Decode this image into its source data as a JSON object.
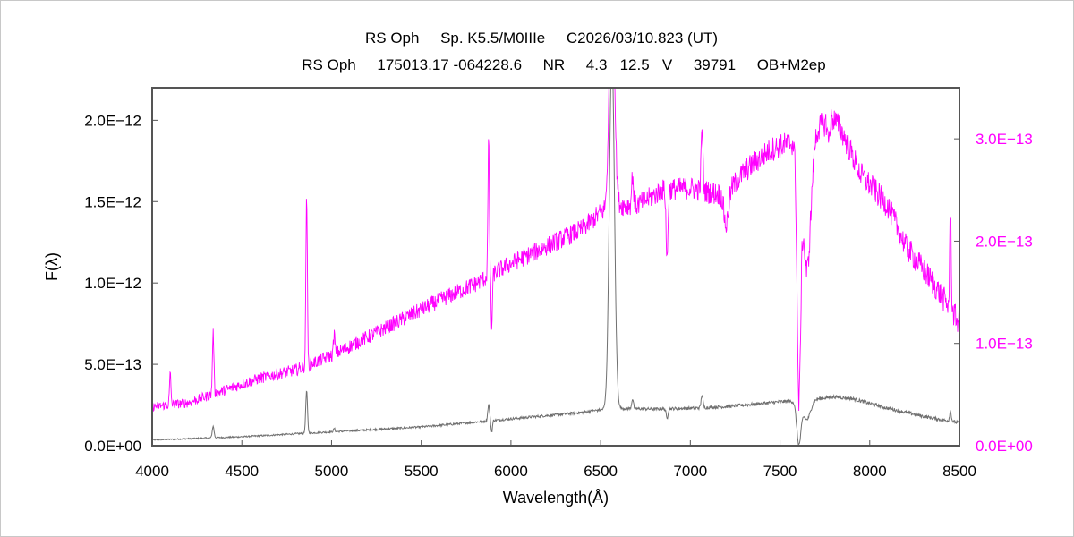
{
  "header": {
    "line1": "RS Oph     Sp. K5.5/M0IIIe     C2026/03/10.823 (UT)",
    "line2": "RS Oph     175013.17 -064228.6     NR     4.3   12.5   V     39791     OB+M2ep"
  },
  "chart_data": {
    "type": "line",
    "title": "RS Oph     Sp. K5.5/M0IIIe     C2026/03/10.823 (UT)",
    "subtitle": "RS Oph     175013.17 -064228.6     NR     4.3   12.5   V     39791     OB+M2ep",
    "xlabel": "Wavelength(Å)",
    "ylabel": "F(λ)",
    "xlim": [
      4000,
      8500
    ],
    "ylim_left": [
      0,
      2.2e-12
    ],
    "ylim_right": [
      0,
      3.5e-13
    ],
    "grid": false,
    "x_ticks": [
      {
        "value": 4000,
        "label": "4000"
      },
      {
        "value": 4500,
        "label": "4500"
      },
      {
        "value": 5000,
        "label": "5000"
      },
      {
        "value": 5500,
        "label": "5500"
      },
      {
        "value": 6000,
        "label": "6000"
      },
      {
        "value": 6500,
        "label": "6500"
      },
      {
        "value": 7000,
        "label": "7000"
      },
      {
        "value": 7500,
        "label": "7500"
      },
      {
        "value": 8000,
        "label": "8000"
      },
      {
        "value": 8500,
        "label": "8500"
      }
    ],
    "y_ticks_left": [
      {
        "value": 0,
        "label": "0.0E+00"
      },
      {
        "value": 5e-13,
        "label": "5.0E−13"
      },
      {
        "value": 1e-12,
        "label": "1.0E−12"
      },
      {
        "value": 1.5e-12,
        "label": "1.5E−12"
      },
      {
        "value": 2e-12,
        "label": "2.0E−12"
      }
    ],
    "y_ticks_right": [
      {
        "value": 0,
        "label": "0.0E+00"
      },
      {
        "value": 1e-13,
        "label": "1.0E−13"
      },
      {
        "value": 2e-13,
        "label": "2.0E−13"
      },
      {
        "value": 3e-13,
        "label": "3.0E−13"
      }
    ],
    "series": [
      {
        "axis": "left",
        "color": "#707070",
        "continuum": [
          [
            4000,
            3.5e-14
          ],
          [
            4500,
            5.5e-14
          ],
          [
            5000,
            8.5e-14
          ],
          [
            5500,
            1.15e-13
          ],
          [
            6000,
            1.65e-13
          ],
          [
            6400,
            2.05e-13
          ],
          [
            6560,
            2.3e-13
          ],
          [
            6800,
            2.25e-13
          ],
          [
            7000,
            2.3e-13
          ],
          [
            7200,
            2.4e-13
          ],
          [
            7500,
            2.7e-13
          ],
          [
            7600,
            2.75e-13
          ],
          [
            7650,
            2.8e-13
          ],
          [
            7800,
            3e-13
          ],
          [
            7900,
            2.9e-13
          ],
          [
            8100,
            2.3e-13
          ],
          [
            8300,
            1.8e-13
          ],
          [
            8500,
            1.4e-13
          ]
        ],
        "features": [
          {
            "x": 4340,
            "depth": 7e-14,
            "width": 5
          },
          {
            "x": 4861,
            "depth": 2.6e-13,
            "width": 5
          },
          {
            "x": 5015,
            "depth": 2e-14,
            "width": 4
          },
          {
            "x": 5876,
            "depth": 1e-13,
            "width": 5
          },
          {
            "x": 5893,
            "depth": -7e-14,
            "width": 4
          },
          {
            "x": 6563,
            "depth": 2.2e-12,
            "width": 14
          },
          {
            "x": 6678,
            "depth": 6e-14,
            "width": 5
          },
          {
            "x": 6870,
            "depth": -6e-14,
            "width": 5
          },
          {
            "x": 7065,
            "depth": 8e-14,
            "width": 5
          },
          {
            "x": 7605,
            "depth": -2.6e-13,
            "width": 12
          },
          {
            "x": 7650,
            "depth": -1.2e-13,
            "width": 20
          },
          {
            "x": 8450,
            "depth": 6e-14,
            "width": 5
          }
        ]
      },
      {
        "axis": "right",
        "color": "#ff00ff",
        "continuum": [
          [
            4000,
            3.8e-14
          ],
          [
            4200,
            4.2e-14
          ],
          [
            4400,
            5.4e-14
          ],
          [
            4600,
            6.6e-14
          ],
          [
            4800,
            7.4e-14
          ],
          [
            5000,
            8.8e-14
          ],
          [
            5200,
            1.06e-13
          ],
          [
            5400,
            1.24e-13
          ],
          [
            5600,
            1.42e-13
          ],
          [
            5800,
            1.58e-13
          ],
          [
            6000,
            1.78e-13
          ],
          [
            6200,
            1.95e-13
          ],
          [
            6400,
            2.12e-13
          ],
          [
            6500,
            2.28e-13
          ],
          [
            6600,
            2.35e-13
          ],
          [
            6700,
            2.35e-13
          ],
          [
            6850,
            2.5e-13
          ],
          [
            7000,
            2.52e-13
          ],
          [
            7100,
            2.48e-13
          ],
          [
            7200,
            2.45e-13
          ],
          [
            7300,
            2.68e-13
          ],
          [
            7450,
            2.9e-13
          ],
          [
            7600,
            2.98e-13
          ],
          [
            7650,
            2.9e-13
          ],
          [
            7700,
            3.1e-13
          ],
          [
            7800,
            3.2e-13
          ],
          [
            7850,
            3.05e-13
          ],
          [
            7950,
            2.65e-13
          ],
          [
            8100,
            2.35e-13
          ],
          [
            8200,
            1.95e-13
          ],
          [
            8350,
            1.6e-13
          ],
          [
            8500,
            1.2e-13
          ]
        ],
        "features": [
          {
            "x": 4101,
            "depth": 3e-14,
            "width": 4
          },
          {
            "x": 4340,
            "depth": 6e-14,
            "width": 4
          },
          {
            "x": 4861,
            "depth": 1.7e-13,
            "width": 4
          },
          {
            "x": 5015,
            "depth": 2e-14,
            "width": 4
          },
          {
            "x": 5876,
            "depth": 1.3e-13,
            "width": 4
          },
          {
            "x": 5893,
            "depth": -5e-14,
            "width": 4
          },
          {
            "x": 6563,
            "depth": 2.4e-13,
            "width": 14
          },
          {
            "x": 6678,
            "depth": 3e-14,
            "width": 5
          },
          {
            "x": 6870,
            "depth": -7e-14,
            "width": 5
          },
          {
            "x": 7065,
            "depth": 6e-14,
            "width": 5
          },
          {
            "x": 7200,
            "depth": -3e-14,
            "width": 12
          },
          {
            "x": 7605,
            "depth": -2.4e-13,
            "width": 10
          },
          {
            "x": 7650,
            "depth": -1.2e-13,
            "width": 22
          },
          {
            "x": 7770,
            "depth": -2e-14,
            "width": 5
          },
          {
            "x": 8450,
            "depth": 1e-13,
            "width": 4
          }
        ]
      }
    ]
  }
}
